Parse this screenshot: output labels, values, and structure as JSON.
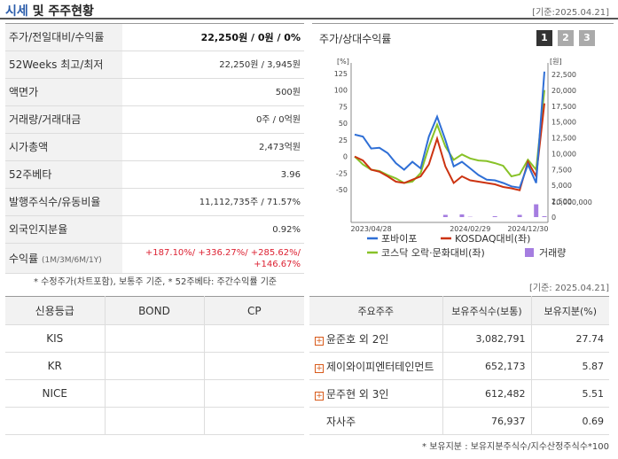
{
  "header": {
    "title_accent": "시세",
    "title_rest": " 및 주주현황",
    "date": "[기준:2025.04.21]"
  },
  "quote": {
    "rows": [
      {
        "label": "주가/전일대비/수익률",
        "value_bold": "22,250",
        "value_rest": "원 / 0원 / 0%"
      },
      {
        "label": "52Weeks 최고/최저",
        "value": "22,250원 / 3,945원"
      },
      {
        "label": "액면가",
        "value": "500원"
      },
      {
        "label": "거래량/거래대금",
        "value": "0주 / 0억원"
      },
      {
        "label": "시가총액",
        "value": "2,473억원"
      },
      {
        "label": "52주베타",
        "value": "3.96"
      },
      {
        "label": "발행주식수/유동비율",
        "value": "11,112,735주 / 71.57%"
      },
      {
        "label": "외국인지분율",
        "value": "0.92%"
      }
    ],
    "returns": {
      "label": "수익률",
      "label_sub": "(1M/3M/6M/1Y)",
      "line1": "+187.10%/ +336.27%/ +285.62%/",
      "line2": "+146.67%"
    },
    "note": "* 수정주가(차트포함), 보통주 기준, * 52주베타: 주간수익률 기준"
  },
  "chart": {
    "title": "주가/상대수익률",
    "pages": [
      "1",
      "2",
      "3"
    ],
    "active_page": 0,
    "colors": {
      "pobio": "#2f6fd6",
      "kosdaq": "#cc3311",
      "culture": "#88c228",
      "volume": "#a57de0"
    },
    "chart_data": {
      "type": "line",
      "left_unit": "[%]",
      "right_unit": "[원]",
      "left_ticks": [
        "125",
        "100",
        "75",
        "50",
        "25",
        "0",
        "-25",
        "-50"
      ],
      "right_ticks": [
        "22,500",
        "20,000",
        "17,500",
        "15,000",
        "12,500",
        "10,000",
        "7,500",
        "5,000",
        "2,500"
      ],
      "volume_ticks": [
        "10,000,000",
        "0"
      ],
      "x_ticks": [
        "2023/04/28",
        "2024/02/29",
        "2024/12/30"
      ],
      "ylim": [
        -50,
        125
      ],
      "series": [
        {
          "name": "포바이포",
          "values": [
            33,
            30,
            12,
            13,
            5,
            -10,
            -20,
            -8,
            -18,
            30,
            60,
            25,
            -15,
            -8,
            -18,
            -28,
            -35,
            -36,
            -40,
            -45,
            -47,
            -12,
            -40,
            128
          ]
        },
        {
          "name": "KOSDAQ대비(좌)",
          "values": [
            0,
            -6,
            -20,
            -23,
            -30,
            -38,
            -40,
            -35,
            -30,
            -12,
            27,
            -15,
            -40,
            -30,
            -36,
            -38,
            -40,
            -42,
            -46,
            -48,
            -51,
            -8,
            -30,
            80
          ]
        },
        {
          "name": "코스닥 오락·문화대비(좌)",
          "values": [
            0,
            -12,
            -20,
            -22,
            -28,
            -33,
            -40,
            -38,
            -25,
            15,
            48,
            15,
            -5,
            3,
            -3,
            -6,
            -7,
            -10,
            -14,
            -30,
            -27,
            -5,
            -20,
            100
          ]
        }
      ],
      "volume": [
        0,
        0,
        0,
        0,
        0,
        0,
        0,
        0,
        0,
        0,
        0,
        1500000,
        0,
        1800000,
        200000,
        0,
        0,
        600000,
        0,
        0,
        1500000,
        0,
        8500000,
        600000
      ],
      "legend": [
        {
          "label": "포바이포"
        },
        {
          "label": "KOSDAQ대비(좌)"
        },
        {
          "label": "코스닥 오락·문화대비(좌)"
        },
        {
          "label": "거래량"
        }
      ]
    }
  },
  "date2": "[기준: 2025.04.21]",
  "credit": {
    "headers": [
      "신용등급",
      "BOND",
      "CP"
    ],
    "rows": [
      [
        "KIS",
        "",
        ""
      ],
      [
        "KR",
        "",
        ""
      ],
      [
        "NICE",
        "",
        ""
      ],
      [
        "",
        "",
        ""
      ]
    ]
  },
  "holders": {
    "headers": [
      "주요주주",
      "보유주식수(보통)",
      "보유지분(%)"
    ],
    "rows": [
      {
        "name": "윤준호 외 2인",
        "shares": "3,082,791",
        "pct": "27.74",
        "plus": true
      },
      {
        "name": "제이와이피엔터테인먼트",
        "shares": "652,173",
        "pct": "5.87",
        "plus": true
      },
      {
        "name": "문주현 외 3인",
        "shares": "612,482",
        "pct": "5.51",
        "plus": true
      },
      {
        "name": "자사주",
        "shares": "76,937",
        "pct": "0.69",
        "plus": false
      }
    ],
    "note": "* 보유지분 : 보유지분주식수/지수산정주식수*100"
  }
}
